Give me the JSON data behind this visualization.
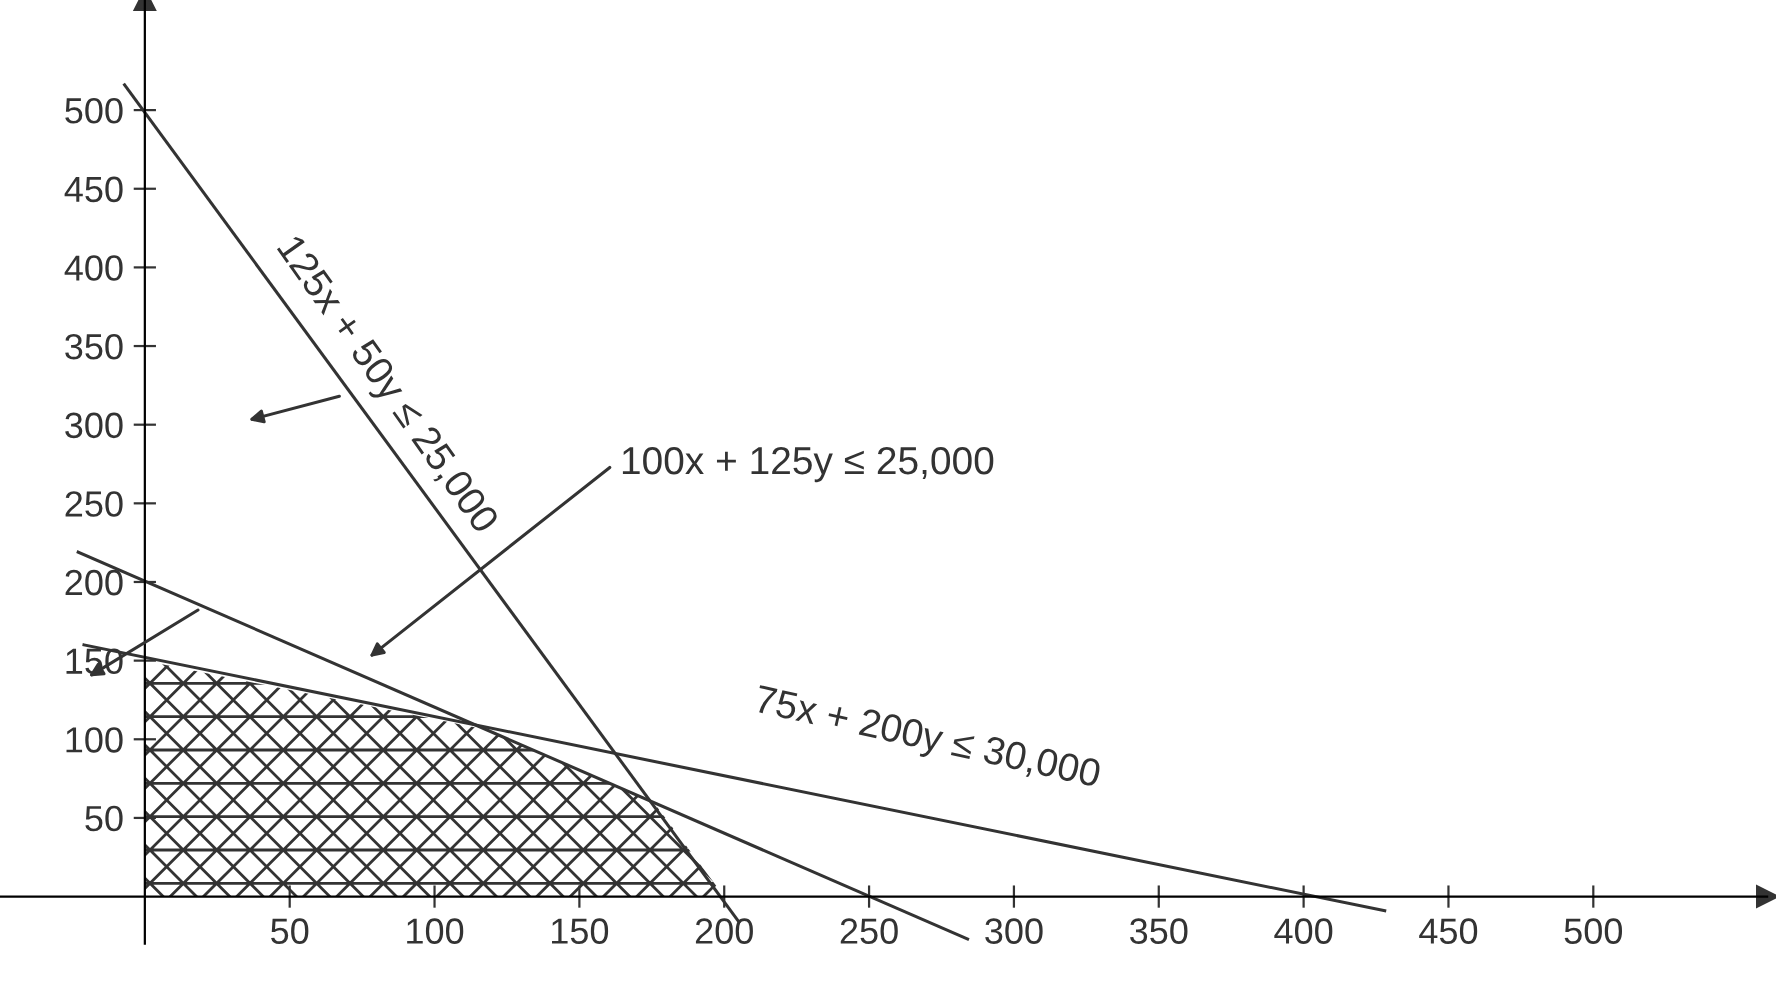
{
  "chart_data": {
    "type": "line",
    "xlim": [
      -50,
      560
    ],
    "ylim": [
      -30,
      570
    ],
    "xticks": [
      50,
      100,
      150,
      200,
      250,
      300,
      350,
      400,
      450,
      500
    ],
    "yticks": [
      50,
      100,
      150,
      200,
      250,
      300,
      350,
      400,
      450,
      500
    ],
    "grid": false,
    "legend": false,
    "marker": "none",
    "line_style": "solid",
    "series": [
      {
        "color": "#333333",
        "x": [
          -7,
          205
        ],
        "values": [
          516,
          -16
        ]
      },
      {
        "color": "#333333",
        "x": [
          -23,
          284
        ],
        "values": [
          219,
          -27
        ]
      },
      {
        "color": "#333333",
        "x": [
          -21,
          428
        ],
        "values": [
          160,
          -9
        ]
      },
      {
        "type": "area",
        "color": "#333333",
        "x": [
          0,
          118,
          176,
          200
        ],
        "values": [
          150,
          106,
          59,
          0
        ]
      }
    ],
    "annotations": [
      "125x + 50y ≤ 25,000",
      "100x + 125y ≤ 25,000",
      "75x + 200y ≤ 30,000"
    ]
  }
}
